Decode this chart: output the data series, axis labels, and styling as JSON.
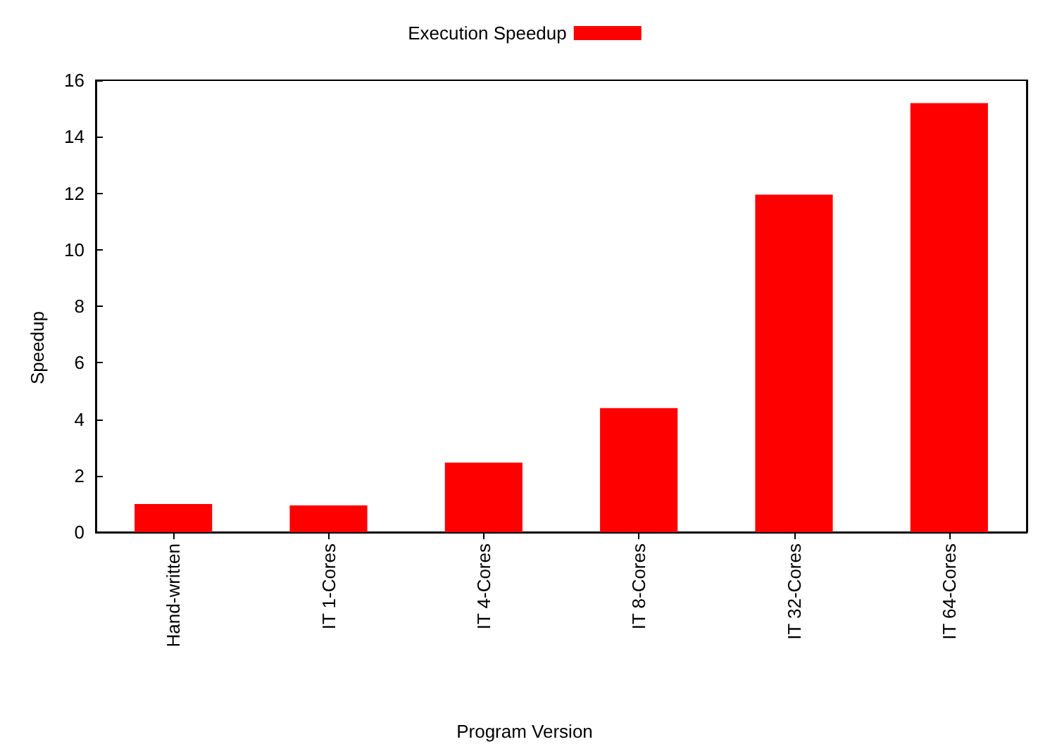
{
  "chart_data": {
    "type": "bar",
    "xlabel": "Program Version",
    "ylabel": "Speedup",
    "categories": [
      "Hand-written",
      "IT 1-Cores",
      "IT 4-Cores",
      "IT 8-Cores",
      "IT 32-Cores",
      "IT 64-Cores"
    ],
    "series": [
      {
        "name": "Execution Speedup",
        "color": "#ff0000",
        "values": [
          1.0,
          0.95,
          2.46,
          4.39,
          11.95,
          15.19
        ]
      }
    ],
    "ylim": [
      0,
      16
    ],
    "yticks": [
      0,
      2,
      4,
      6,
      8,
      10,
      12,
      14,
      16
    ],
    "grid": false,
    "legend": "top"
  }
}
